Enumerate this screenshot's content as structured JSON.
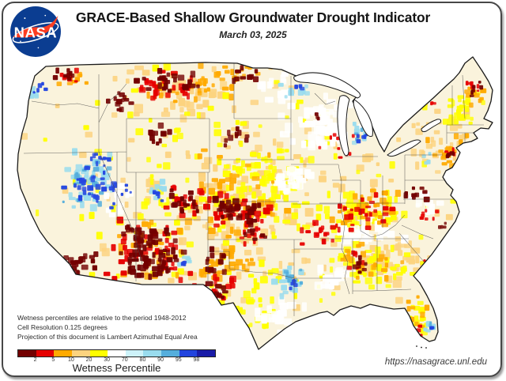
{
  "header": {
    "title": "GRACE-Based Shallow Groundwater Drought Indicator",
    "date": "March 03, 2025",
    "logo_text": "NASA"
  },
  "footnotes": [
    "Wetness percentiles are relative to the period 1948-2012",
    "Cell Resolution 0.125 degrees",
    "Projection of this document is Lambert Azimuthal Equal Area"
  ],
  "colorbar": {
    "label": "Wetness Percentile",
    "ticks": [
      "2",
      "5",
      "10",
      "20",
      "30",
      "70",
      "80",
      "90",
      "95",
      "98"
    ],
    "colors": [
      "#730000",
      "#E60000",
      "#FFAA00",
      "#FCD37F",
      "#FFFF00",
      "#FFFFFF",
      "#CDF2F9",
      "#99DCEE",
      "#55AEDC",
      "#2244DE",
      "#1A1CA8"
    ]
  },
  "footer_url": "https://nasagrace.unl.edu",
  "map_render": {
    "base_color": "#FAF3DC",
    "palette": {
      "d4": "#730000",
      "d3": "#E60000",
      "d2": "#FFAA00",
      "d1": "#FCD37F",
      "d0": "#FFFF00",
      "neutral": "#FFFFFF",
      "w1": "#9ADCEE",
      "w2": "#55AEDC",
      "w3": "#2547E0"
    },
    "clusters": [
      [
        "d1",
        320,
        250,
        300,
        185,
        220,
        4,
        11
      ],
      [
        "d1",
        300,
        265,
        80,
        60,
        50,
        5,
        12
      ],
      [
        "d1",
        480,
        330,
        60,
        35,
        40,
        5,
        12
      ],
      [
        "d1",
        560,
        180,
        50,
        45,
        35,
        4,
        10
      ],
      [
        "d1",
        240,
        120,
        90,
        40,
        40,
        5,
        12
      ],
      [
        "d0",
        320,
        250,
        300,
        185,
        200,
        4,
        10
      ],
      [
        "d0",
        455,
        270,
        60,
        30,
        45,
        4,
        10
      ],
      [
        "d0",
        470,
        340,
        55,
        30,
        40,
        4,
        10
      ],
      [
        "d0",
        310,
        395,
        40,
        30,
        30,
        4,
        10
      ],
      [
        "d0",
        590,
        135,
        30,
        35,
        25,
        4,
        9
      ],
      [
        "d0",
        330,
        230,
        60,
        40,
        40,
        4,
        10
      ],
      [
        "d0",
        525,
        405,
        20,
        30,
        18,
        4,
        9
      ],
      [
        "neutral",
        410,
        155,
        65,
        45,
        55,
        6,
        14
      ],
      [
        "neutral",
        378,
        225,
        35,
        22,
        22,
        6,
        12
      ],
      [
        "neutral",
        468,
        292,
        55,
        18,
        30,
        6,
        12
      ],
      [
        "neutral",
        352,
        110,
        30,
        18,
        16,
        6,
        12
      ],
      [
        "neutral",
        352,
        400,
        38,
        22,
        20,
        6,
        12
      ],
      [
        "neutral",
        425,
        352,
        30,
        22,
        18,
        6,
        12
      ],
      [
        "neutral",
        540,
        258,
        22,
        14,
        12,
        5,
        10
      ],
      [
        "neutral",
        152,
        252,
        20,
        28,
        14,
        5,
        10
      ],
      [
        "d2",
        300,
        255,
        75,
        70,
        55,
        4,
        10
      ],
      [
        "d2",
        288,
        338,
        40,
        28,
        28,
        4,
        10
      ],
      [
        "d2",
        250,
        108,
        70,
        28,
        35,
        4,
        9
      ],
      [
        "d2",
        192,
        320,
        55,
        42,
        28,
        4,
        9
      ],
      [
        "d2",
        460,
        262,
        55,
        28,
        30,
        4,
        9
      ],
      [
        "d2",
        472,
        332,
        50,
        28,
        22,
        4,
        9
      ],
      [
        "d2",
        560,
        200,
        38,
        35,
        20,
        4,
        8
      ],
      [
        "d2",
        600,
        120,
        15,
        25,
        10,
        4,
        8
      ],
      [
        "d2",
        527,
        400,
        18,
        30,
        12,
        4,
        8
      ],
      [
        "d2",
        90,
        100,
        22,
        12,
        8,
        4,
        8
      ],
      [
        "d2",
        310,
        90,
        30,
        14,
        10,
        4,
        8
      ],
      [
        "w1",
        112,
        228,
        45,
        42,
        38,
        4,
        10
      ],
      [
        "w1",
        370,
        357,
        26,
        22,
        16,
        4,
        9
      ],
      [
        "w1",
        377,
        113,
        22,
        12,
        9,
        4,
        8
      ],
      [
        "w1",
        456,
        168,
        20,
        20,
        10,
        4,
        8
      ],
      [
        "w1",
        196,
        240,
        16,
        13,
        9,
        4,
        8
      ],
      [
        "w1",
        543,
        412,
        10,
        9,
        6,
        4,
        7
      ],
      [
        "w1",
        234,
        331,
        10,
        8,
        6,
        4,
        7
      ],
      [
        "w1",
        46,
        117,
        10,
        12,
        6,
        4,
        7
      ],
      [
        "w1",
        538,
        200,
        8,
        8,
        4,
        4,
        6
      ],
      [
        "w2",
        112,
        232,
        42,
        38,
        20,
        3,
        8
      ],
      [
        "w2",
        370,
        357,
        20,
        18,
        8,
        3,
        7
      ],
      [
        "w2",
        455,
        168,
        14,
        14,
        6,
        3,
        6
      ],
      [
        "w2",
        542,
        412,
        8,
        8,
        4,
        3,
        6
      ],
      [
        "w3",
        116,
        237,
        40,
        34,
        34,
        3,
        8
      ],
      [
        "w3",
        127,
        203,
        18,
        12,
        10,
        3,
        7
      ],
      [
        "w3",
        50,
        112,
        9,
        10,
        5,
        3,
        6
      ],
      [
        "w3",
        196,
        246,
        13,
        11,
        7,
        3,
        6
      ],
      [
        "w3",
        236,
        333,
        8,
        7,
        4,
        3,
        6
      ],
      [
        "w3",
        379,
        112,
        8,
        6,
        4,
        3,
        6
      ],
      [
        "w3",
        458,
        172,
        10,
        9,
        5,
        3,
        6
      ],
      [
        "w3",
        372,
        360,
        9,
        8,
        5,
        3,
        6
      ],
      [
        "w3",
        545,
        415,
        6,
        5,
        3,
        3,
        5
      ],
      [
        "w3",
        160,
        240,
        8,
        8,
        4,
        3,
        5
      ],
      [
        "d3",
        188,
        318,
        55,
        45,
        40,
        4,
        9
      ],
      [
        "d3",
        215,
        108,
        48,
        22,
        25,
        4,
        9
      ],
      [
        "d3",
        300,
        268,
        48,
        26,
        30,
        4,
        9
      ],
      [
        "d3",
        460,
        268,
        48,
        26,
        24,
        3,
        8
      ],
      [
        "d3",
        405,
        292,
        32,
        20,
        16,
        3,
        8
      ],
      [
        "d3",
        272,
        372,
        32,
        25,
        20,
        4,
        9
      ],
      [
        "d3",
        232,
        255,
        28,
        22,
        16,
        4,
        8
      ],
      [
        "d3",
        530,
        418,
        14,
        12,
        7,
        3,
        6
      ],
      [
        "d3",
        548,
        330,
        12,
        10,
        6,
        3,
        6
      ],
      [
        "d3",
        598,
        115,
        10,
        16,
        7,
        3,
        6
      ],
      [
        "d3",
        82,
        97,
        20,
        9,
        8,
        3,
        7
      ],
      [
        "d3",
        425,
        180,
        28,
        22,
        10,
        3,
        6
      ],
      [
        "d3",
        545,
        128,
        5,
        5,
        3,
        3,
        5
      ],
      [
        "d3",
        540,
        272,
        15,
        10,
        7,
        3,
        6
      ],
      [
        "d3",
        568,
        195,
        8,
        8,
        5,
        3,
        6
      ],
      [
        "d3",
        452,
        332,
        12,
        16,
        8,
        3,
        7
      ],
      [
        "d3",
        322,
        300,
        22,
        13,
        9,
        3,
        7
      ],
      [
        "d4",
        185,
        320,
        45,
        38,
        55,
        4,
        10
      ],
      [
        "d4",
        105,
        330,
        24,
        17,
        18,
        4,
        9
      ],
      [
        "d4",
        268,
        376,
        27,
        21,
        25,
        4,
        10
      ],
      [
        "d4",
        210,
        330,
        30,
        24,
        14,
        4,
        8
      ],
      [
        "d4",
        272,
        330,
        20,
        18,
        12,
        4,
        8
      ],
      [
        "d4",
        295,
        265,
        36,
        20,
        28,
        4,
        9
      ],
      [
        "d4",
        235,
        255,
        24,
        18,
        16,
        4,
        8
      ],
      [
        "d4",
        212,
        105,
        45,
        18,
        24,
        4,
        9
      ],
      [
        "d4",
        150,
        130,
        20,
        15,
        12,
        4,
        8
      ],
      [
        "d4",
        196,
        172,
        24,
        16,
        10,
        4,
        8
      ],
      [
        "d4",
        316,
        95,
        24,
        11,
        9,
        4,
        8
      ],
      [
        "d4",
        300,
        172,
        28,
        16,
        10,
        4,
        8
      ],
      [
        "d4",
        80,
        95,
        20,
        9,
        8,
        4,
        8
      ],
      [
        "d4",
        525,
        246,
        16,
        13,
        10,
        4,
        8
      ],
      [
        "d4",
        456,
        332,
        12,
        16,
        8,
        4,
        8
      ],
      [
        "d4",
        165,
        290,
        16,
        9,
        6,
        4,
        7
      ],
      [
        "d4",
        322,
        300,
        20,
        13,
        7,
        4,
        7
      ],
      [
        "d4",
        600,
        110,
        10,
        16,
        6,
        3,
        6
      ],
      [
        "d4",
        570,
        196,
        7,
        7,
        5,
        3,
        6
      ],
      [
        "d4",
        560,
        285,
        10,
        9,
        4,
        3,
        5
      ],
      [
        "d4",
        402,
        150,
        8,
        6,
        3,
        3,
        5
      ]
    ]
  }
}
